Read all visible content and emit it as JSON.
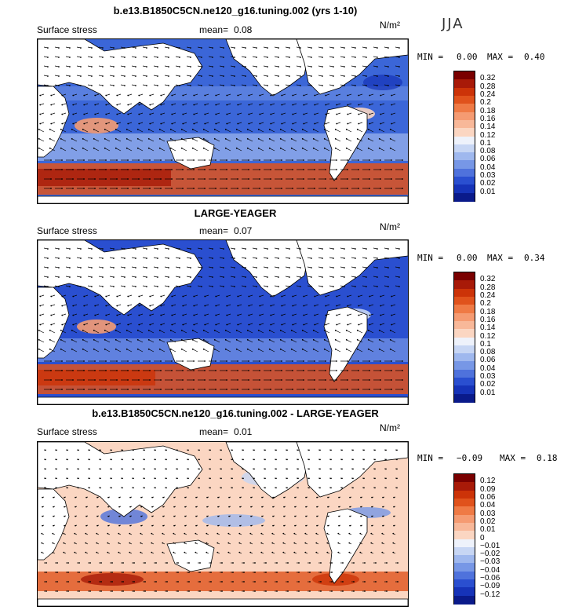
{
  "season": "JJA",
  "unit": "N/m²",
  "panels": [
    {
      "title": "b.e13.B1850C5CN.ne120_g16.tuning.002 (yrs 1-10)",
      "variable": "Surface stress",
      "mean_label": "mean=",
      "mean_value": "0.08",
      "min_label": "MIN =",
      "min_value": "0.00",
      "max_label": "MAX =",
      "max_value": "0.40",
      "colorbar_labels": [
        "0.32",
        "0.28",
        "0.24",
        "0.2",
        "0.18",
        "0.16",
        "0.14",
        "0.12",
        "0.1",
        "0.08",
        "0.06",
        "0.04",
        "0.03",
        "0.02",
        "0.01"
      ],
      "colors": [
        "#7a0000",
        "#a81a08",
        "#cc3308",
        "#e0521c",
        "#ef7a45",
        "#f59b72",
        "#f8b899",
        "#fbd6c2",
        "#eef2fb",
        "#c7d6f4",
        "#9fb8ee",
        "#7797e6",
        "#4f72dc",
        "#2a4fd0",
        "#1633b8",
        "#0a1a8a"
      ]
    },
    {
      "title": "LARGE-YEAGER",
      "variable": "Surface stress",
      "mean_label": "mean=",
      "mean_value": "0.07",
      "min_label": "MIN =",
      "min_value": "0.00",
      "max_label": "MAX =",
      "max_value": "0.34",
      "colorbar_labels": [
        "0.32",
        "0.28",
        "0.24",
        "0.2",
        "0.18",
        "0.16",
        "0.14",
        "0.12",
        "0.1",
        "0.08",
        "0.06",
        "0.04",
        "0.03",
        "0.02",
        "0.01"
      ],
      "colors": [
        "#7a0000",
        "#a81a08",
        "#cc3308",
        "#e0521c",
        "#ef7a45",
        "#f59b72",
        "#f8b899",
        "#fbd6c2",
        "#eef2fb",
        "#c7d6f4",
        "#9fb8ee",
        "#7797e6",
        "#4f72dc",
        "#2a4fd0",
        "#1633b8",
        "#0a1a8a"
      ]
    },
    {
      "title": "b.e13.B1850C5CN.ne120_g16.tuning.002 - LARGE-YEAGER",
      "variable": "Surface stress",
      "mean_label": "mean=",
      "mean_value": "0.01",
      "min_label": "MIN =",
      "min_value": "−0.09",
      "max_label": "MAX =",
      "max_value": "0.18",
      "colorbar_labels": [
        "0.12",
        "0.09",
        "0.06",
        "0.04",
        "0.03",
        "0.02",
        "0.01",
        "0",
        "−0.01",
        "−0.02",
        "−0.03",
        "−0.04",
        "−0.06",
        "−0.09",
        "−0.12"
      ],
      "colors": [
        "#7a0000",
        "#a81a08",
        "#cc3308",
        "#e0521c",
        "#ef7a45",
        "#f59b72",
        "#f8b899",
        "#fbd6c2",
        "#eef2fb",
        "#c7d6f4",
        "#9fb8ee",
        "#7797e6",
        "#4f72dc",
        "#2a4fd0",
        "#1633b8",
        "#0a1a8a"
      ]
    }
  ]
}
